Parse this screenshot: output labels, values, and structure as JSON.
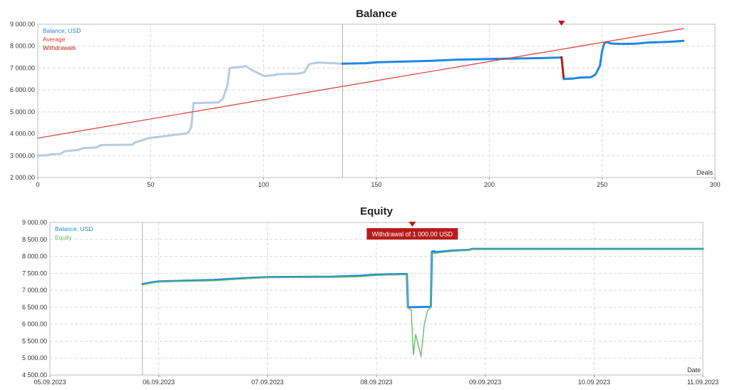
{
  "chart_data": [
    {
      "type": "line",
      "title": "Balance",
      "xlabel": "Deals",
      "ylabel": "",
      "xlim": [
        0,
        300
      ],
      "ylim": [
        2000,
        9000
      ],
      "x_ticks": [
        0,
        50,
        100,
        150,
        200,
        250,
        300
      ],
      "x_tick_labels": [
        "0",
        "50",
        "100",
        "150",
        "200",
        "250",
        "300"
      ],
      "y_ticks": [
        2000,
        3000,
        4000,
        5000,
        6000,
        7000,
        8000,
        9000
      ],
      "y_tick_labels": [
        "2 000.00",
        "3 000.00",
        "4 000.00",
        "5 000.00",
        "6 000.00",
        "7 000.00",
        "8 000.00",
        "9 000.00"
      ],
      "grid": true,
      "legend_position": "top-left",
      "legend": [
        "Balance, USD",
        "Average",
        "Withdrawals"
      ],
      "vertical_marker_x": 135,
      "withdrawal_marker_x": 232,
      "series": [
        {
          "name": "Balance, USD",
          "color": "#b4cce4",
          "x": [
            0,
            4,
            6,
            10,
            12,
            18,
            20,
            26,
            28,
            42,
            43,
            48,
            49,
            66,
            67,
            68,
            69,
            80,
            82,
            84,
            85,
            90,
            92,
            95,
            97,
            100,
            101,
            105,
            106,
            115,
            118,
            120,
            121,
            124,
            135
          ],
          "y": [
            3000,
            3020,
            3060,
            3080,
            3200,
            3260,
            3340,
            3370,
            3480,
            3500,
            3600,
            3760,
            3800,
            4020,
            4100,
            4300,
            5400,
            5430,
            5600,
            6200,
            7000,
            7050,
            7100,
            6900,
            6800,
            6650,
            6640,
            6680,
            6720,
            6740,
            6800,
            7150,
            7200,
            7250,
            7200
          ]
        },
        {
          "name": "Balance, USD",
          "color": "#1e88e5",
          "x": [
            135,
            145,
            150,
            160,
            175,
            185,
            200,
            215,
            225,
            231,
            232
          ],
          "y": [
            7200,
            7220,
            7260,
            7290,
            7330,
            7380,
            7410,
            7440,
            7460,
            7480,
            7490
          ]
        },
        {
          "name": "Withdrawals",
          "color": "#b71c1c",
          "x": [
            232,
            233
          ],
          "y": [
            7490,
            6500
          ]
        },
        {
          "name": "Balance, USD",
          "color": "#1e88e5",
          "x": [
            233,
            237,
            240,
            245,
            247,
            249,
            250,
            251,
            252,
            254,
            258,
            265,
            270,
            280,
            286
          ],
          "y": [
            6500,
            6520,
            6560,
            6580,
            6700,
            7100,
            7800,
            8150,
            8180,
            8120,
            8100,
            8110,
            8160,
            8200,
            8240
          ]
        },
        {
          "name": "Average",
          "color": "#e53935",
          "x": [
            0,
            286
          ],
          "y": [
            3800,
            8800
          ]
        }
      ]
    },
    {
      "type": "line",
      "title": "Equity",
      "xlabel": "Date",
      "ylabel": "",
      "xlim": [
        0,
        6
      ],
      "ylim": [
        4500,
        9000
      ],
      "x_ticks": [
        0,
        1,
        2,
        3,
        4,
        5,
        6
      ],
      "x_tick_labels": [
        "05.09.2023",
        "06.09.2023",
        "07.09.2023",
        "08.09.2023",
        "09.09.2023",
        "10.09.2023",
        "11.09.2023"
      ],
      "y_ticks": [
        4500,
        5000,
        5500,
        6000,
        6500,
        7000,
        7500,
        8000,
        8500,
        9000
      ],
      "y_tick_labels": [
        "4 500.00",
        "5 000.00",
        "5 500.00",
        "6 000.00",
        "6 500.00",
        "7 000.00",
        "7 500.00",
        "8 000.00",
        "8 500.00",
        "9 000.00"
      ],
      "grid": true,
      "legend_position": "top-left",
      "legend": [
        "Balance, USD",
        "Equity"
      ],
      "vertical_marker_x": 0.85,
      "annotation": {
        "text": "Withdrawal of 1 000.00 USD",
        "x": 3.33
      },
      "series": [
        {
          "name": "Balance, USD",
          "color": "#1e88e5",
          "x": [
            0.85,
            0.95,
            1.0,
            1.5,
            1.7,
            2.0,
            2.6,
            2.85,
            3.0,
            3.28,
            3.29,
            3.5,
            3.51,
            3.53,
            3.54,
            3.7,
            3.85,
            3.88,
            6.0
          ],
          "y": [
            7180,
            7240,
            7260,
            7300,
            7340,
            7390,
            7400,
            7430,
            7460,
            7480,
            6500,
            6510,
            8140,
            8150,
            8120,
            8170,
            8190,
            8220,
            8220
          ]
        },
        {
          "name": "Equity",
          "color": "#66bb6a",
          "x": [
            0.85,
            0.95,
            1.0,
            1.5,
            1.7,
            2.0,
            2.6,
            2.85,
            3.0,
            3.28,
            3.29,
            3.32,
            3.34,
            3.36,
            3.38,
            3.41,
            3.44,
            3.47,
            3.5,
            3.51,
            3.53,
            3.7,
            3.85,
            3.88,
            6.0
          ],
          "y": [
            7160,
            7220,
            7250,
            7280,
            7320,
            7380,
            7380,
            7400,
            7440,
            7460,
            6480,
            6420,
            5100,
            5700,
            5450,
            5050,
            6000,
            6400,
            6500,
            8080,
            8090,
            8150,
            8180,
            8210,
            8210
          ]
        }
      ]
    }
  ]
}
